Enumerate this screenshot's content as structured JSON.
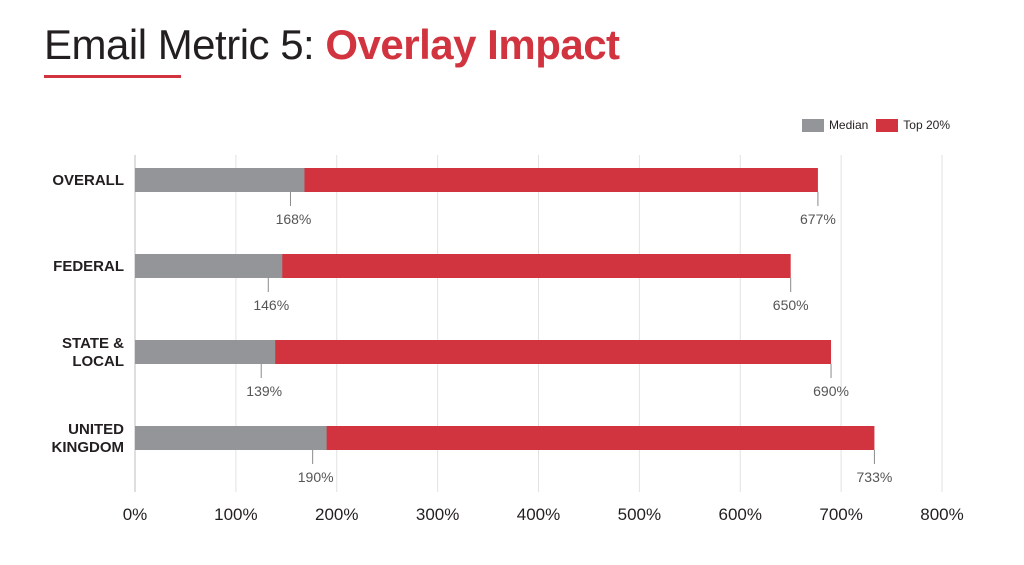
{
  "title": {
    "prefix": "Email Metric 5:",
    "highlight": "Overlay Impact"
  },
  "colors": {
    "median": "#949599",
    "top20": "#d1343f",
    "text": "#231f20",
    "grid": "#e2e2e2",
    "accent": "#d1343f"
  },
  "legend": [
    {
      "label": "Median",
      "color": "#949599"
    },
    {
      "label": "Top 20%",
      "color": "#d1343f"
    }
  ],
  "chart_data": {
    "type": "bar",
    "orientation": "horizontal",
    "stacking": "overlay",
    "categories": [
      [
        "OVERALL"
      ],
      [
        "FEDERAL"
      ],
      [
        "STATE &",
        "LOCAL"
      ],
      [
        "UNITED",
        "KINGDOM"
      ]
    ],
    "series": [
      {
        "name": "Median",
        "values": [
          168,
          146,
          139,
          190
        ],
        "labels": [
          "168%",
          "146%",
          "139%",
          "190%"
        ]
      },
      {
        "name": "Top 20%",
        "values": [
          677,
          650,
          690,
          733
        ],
        "labels": [
          "677%",
          "650%",
          "690%",
          "733%"
        ]
      }
    ],
    "xlim": [
      0,
      800
    ],
    "xticks": [
      0,
      100,
      200,
      300,
      400,
      500,
      600,
      700,
      800
    ],
    "xtick_labels": [
      "0%",
      "100%",
      "200%",
      "300%",
      "400%",
      "500%",
      "600%",
      "700%",
      "800%"
    ],
    "grid": true,
    "legend_position": "top-right"
  }
}
